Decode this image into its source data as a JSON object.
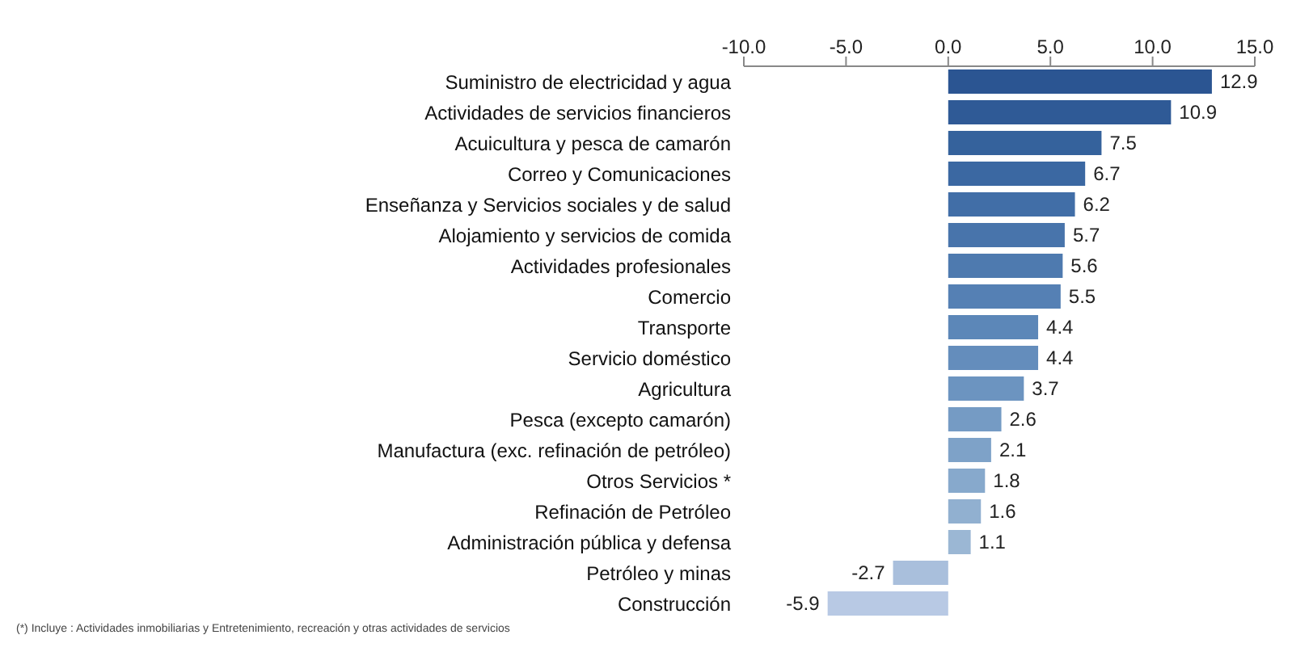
{
  "chart_data": {
    "type": "bar",
    "orientation": "horizontal",
    "categories": [
      "Suministro de electricidad y agua",
      "Actividades de servicios financieros",
      "Acuicultura y pesca de camarón",
      "Correo y Comunicaciones",
      "Enseñanza  y Servicios sociales y de salud",
      "Alojamiento y servicios de comida ",
      "Actividades profesionales",
      "Comercio",
      "Transporte",
      "Servicio doméstico",
      "Agricultura",
      "Pesca (excepto camarón)",
      "Manufactura (exc. refinación de petróleo)",
      "Otros Servicios *",
      "Refinación de Petróleo",
      "Administración pública y defensa",
      "Petróleo y minas",
      "Construcción"
    ],
    "values": [
      12.9,
      10.9,
      7.5,
      6.7,
      6.2,
      5.7,
      5.6,
      5.5,
      4.4,
      4.4,
      3.7,
      2.6,
      2.1,
      1.8,
      1.6,
      1.1,
      -2.7,
      -5.9
    ],
    "colors": [
      "#2b5592",
      "#2f5a96",
      "#35629c",
      "#3b68a2",
      "#416ea7",
      "#4874ab",
      "#4e7aaf",
      "#5580b4",
      "#5c87b8",
      "#648dbc",
      "#6c94c0",
      "#759bc4",
      "#7ea2c8",
      "#87a9cc",
      "#91b0d0",
      "#9bb7d4",
      "#a9bfdc",
      "#b8c9e4"
    ],
    "xlim": [
      -10,
      15
    ],
    "xticks": [
      {
        "value": -10,
        "label": "-10.0"
      },
      {
        "value": -5,
        "label": "-5.0"
      },
      {
        "value": 0,
        "label": "0.0"
      },
      {
        "value": 5,
        "label": "5.0"
      },
      {
        "value": 10,
        "label": "10.0"
      },
      {
        "value": 15,
        "label": "15.0"
      }
    ],
    "data_labels": true,
    "annotations": [
      "(*) Incluye : Actividades inmobiliarias y Entretenimiento, recreación y otras actividades de servicios"
    ]
  }
}
